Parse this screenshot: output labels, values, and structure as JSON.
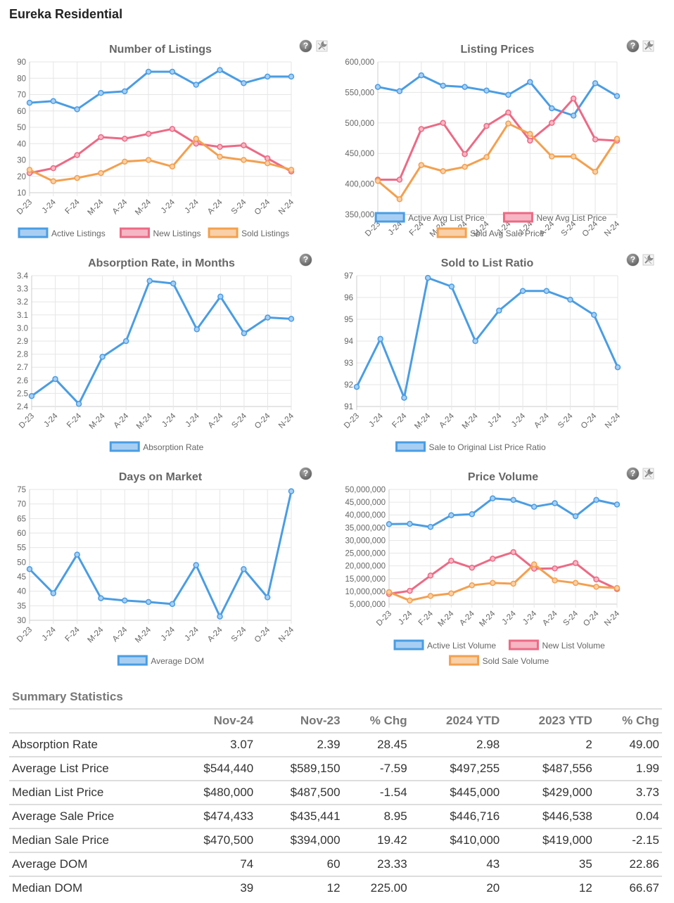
{
  "page": {
    "title": "Eureka Residential"
  },
  "icons": {
    "help": "?"
  },
  "colors": {
    "blue": "#4a9de3",
    "pink": "#ec6a85",
    "orange": "#f3a04f",
    "blue_fill": "#a8cff3",
    "pink_fill": "#f6b6c4",
    "orange_fill": "#f9d0a7",
    "grid": "#e6e6e6"
  },
  "chart_data": [
    {
      "id": "listings",
      "type": "line",
      "title": "Number of Listings",
      "categories": [
        "D-23",
        "J-24",
        "F-24",
        "M-24",
        "A-24",
        "M-24",
        "J-24",
        "J-24",
        "A-24",
        "S-24",
        "O-24",
        "N-24"
      ],
      "ylim": [
        10,
        90
      ],
      "yticks": [
        10,
        20,
        30,
        40,
        50,
        60,
        70,
        80,
        90
      ],
      "ytick_labels": [
        "10",
        "20",
        "30",
        "40",
        "50",
        "60",
        "70",
        "80",
        "90"
      ],
      "grid": true,
      "legend": "bottom",
      "series": [
        {
          "name": "Active Listings",
          "color": "blue",
          "values": [
            65,
            66,
            61,
            71,
            72,
            84,
            84,
            76,
            85,
            77,
            81,
            81
          ]
        },
        {
          "name": "New Listings",
          "color": "pink",
          "values": [
            22,
            25,
            33,
            44,
            43,
            46,
            49,
            40,
            38,
            39,
            31,
            23
          ]
        },
        {
          "name": "Sold Listings",
          "color": "orange",
          "values": [
            24,
            17,
            19,
            22,
            29,
            30,
            26,
            43,
            32,
            30,
            28,
            24
          ]
        }
      ],
      "tools": true
    },
    {
      "id": "prices",
      "type": "line",
      "title": "Listing Prices",
      "categories": [
        "D-23",
        "J-24",
        "F-24",
        "M-24",
        "A-24",
        "M-24",
        "J-24",
        "J-24",
        "A-24",
        "S-24",
        "O-24",
        "N-24"
      ],
      "ylim": [
        350000,
        600000
      ],
      "yticks": [
        350000,
        400000,
        450000,
        500000,
        550000,
        600000
      ],
      "ytick_labels": [
        "350,000",
        "400,000",
        "450,000",
        "500,000",
        "550,000",
        "600,000"
      ],
      "grid": true,
      "legend": "bottom",
      "series": [
        {
          "name": "Active Avg List Price",
          "color": "blue",
          "values": [
            559000,
            552000,
            578000,
            561000,
            559000,
            553000,
            546000,
            567000,
            524000,
            512000,
            565000,
            544000
          ]
        },
        {
          "name": "New Avg List Price",
          "color": "pink",
          "values": [
            407000,
            407000,
            490000,
            500000,
            449000,
            495000,
            517000,
            471000,
            500000,
            540000,
            473000,
            471000
          ]
        },
        {
          "name": "Sold Avg Sale Price",
          "color": "orange",
          "values": [
            405000,
            375000,
            431000,
            421000,
            428000,
            444000,
            499000,
            482000,
            445000,
            445000,
            420000,
            474000
          ]
        }
      ],
      "tools": true
    },
    {
      "id": "absorption",
      "type": "line",
      "title": "Absorption Rate, in Months",
      "categories": [
        "D-23",
        "J-24",
        "F-24",
        "M-24",
        "A-24",
        "M-24",
        "J-24",
        "J-24",
        "A-24",
        "S-24",
        "O-24",
        "N-24"
      ],
      "ylim": [
        2.4,
        3.4
      ],
      "yticks": [
        2.4,
        2.5,
        2.6,
        2.7,
        2.8,
        2.9,
        3.0,
        3.1,
        3.2,
        3.3,
        3.4
      ],
      "ytick_labels": [
        "2.4",
        "2.5",
        "2.6",
        "2.7",
        "2.8",
        "2.9",
        "3.0",
        "3.1",
        "3.2",
        "3.3",
        "3.4"
      ],
      "grid": true,
      "legend": "bottom",
      "series": [
        {
          "name": "Absorption Rate",
          "color": "blue",
          "values": [
            2.48,
            2.61,
            2.42,
            2.78,
            2.9,
            3.36,
            3.34,
            2.99,
            3.24,
            2.96,
            3.08,
            3.07
          ]
        }
      ],
      "tools": false
    },
    {
      "id": "ratio",
      "type": "line",
      "title": "Sold to List Ratio",
      "categories": [
        "D-23",
        "J-24",
        "F-24",
        "M-24",
        "A-24",
        "M-24",
        "J-24",
        "J-24",
        "A-24",
        "S-24",
        "O-24",
        "N-24"
      ],
      "ylim": [
        91,
        97
      ],
      "yticks": [
        91,
        92,
        93,
        94,
        95,
        96,
        97
      ],
      "ytick_labels": [
        "91",
        "92",
        "93",
        "94",
        "95",
        "96",
        "97"
      ],
      "grid": true,
      "legend": "bottom",
      "series": [
        {
          "name": "Sale to Original List Price Ratio",
          "color": "blue",
          "values": [
            91.9,
            94.1,
            91.4,
            96.9,
            96.5,
            94.0,
            95.4,
            96.3,
            96.3,
            95.9,
            95.2,
            92.8
          ]
        }
      ],
      "tools": true
    },
    {
      "id": "dom",
      "type": "line",
      "title": "Days on Market",
      "categories": [
        "D-23",
        "J-24",
        "F-24",
        "M-24",
        "A-24",
        "M-24",
        "J-24",
        "J-24",
        "A-24",
        "S-24",
        "O-24",
        "N-24"
      ],
      "ylim": [
        30,
        75
      ],
      "yticks": [
        30,
        35,
        40,
        45,
        50,
        55,
        60,
        65,
        70,
        75
      ],
      "ytick_labels": [
        "30",
        "35",
        "40",
        "45",
        "50",
        "55",
        "60",
        "65",
        "70",
        "75"
      ],
      "grid": true,
      "legend": "bottom",
      "series": [
        {
          "name": "Average DOM",
          "color": "blue",
          "values": [
            47.6,
            39.3,
            52.6,
            37.6,
            36.8,
            36.3,
            35.6,
            49.0,
            31.3,
            47.6,
            37.9,
            74.4
          ]
        }
      ],
      "tools": false
    },
    {
      "id": "volume",
      "type": "line",
      "title": "Price Volume",
      "categories": [
        "D-23",
        "J-24",
        "F-24",
        "M-24",
        "A-24",
        "M-24",
        "J-24",
        "J-24",
        "A-24",
        "S-24",
        "O-24",
        "N-24"
      ],
      "ylim": [
        5000000,
        50000000
      ],
      "yticks": [
        5000000,
        10000000,
        15000000,
        20000000,
        25000000,
        30000000,
        35000000,
        40000000,
        45000000,
        50000000
      ],
      "ytick_labels": [
        "5,000,000",
        "10,000,000",
        "15,000,000",
        "20,000,000",
        "25,000,000",
        "30,000,000",
        "35,000,000",
        "40,000,000",
        "45,000,000",
        "50,000,000"
      ],
      "grid": true,
      "legend": "bottom",
      "series": [
        {
          "name": "Active List Volume",
          "color": "blue",
          "values": [
            36400000,
            36500000,
            35300000,
            39900000,
            40300000,
            46500000,
            45900000,
            43200000,
            44600000,
            39500000,
            45900000,
            44100000
          ]
        },
        {
          "name": "New List Volume",
          "color": "pink",
          "values": [
            9000000,
            10200000,
            16200000,
            22000000,
            19300000,
            22800000,
            25400000,
            18900000,
            19000000,
            21100000,
            14700000,
            10900000
          ]
        },
        {
          "name": "Sold Sale Volume",
          "color": "orange",
          "values": [
            9700000,
            6400000,
            8200000,
            9200000,
            12400000,
            13300000,
            13000000,
            20600000,
            14300000,
            13300000,
            11800000,
            11300000
          ]
        }
      ],
      "tools": true
    }
  ],
  "summary": {
    "title": "Summary Statistics",
    "headers": [
      "",
      "Nov-24",
      "Nov-23",
      "% Chg",
      "2024 YTD",
      "2023 YTD",
      "% Chg"
    ],
    "rows": [
      [
        "Absorption Rate",
        "3.07",
        "2.39",
        "28.45",
        "2.98",
        "2",
        "49.00"
      ],
      [
        "Average List Price",
        "$544,440",
        "$589,150",
        "-7.59",
        "$497,255",
        "$487,556",
        "1.99"
      ],
      [
        "Median List Price",
        "$480,000",
        "$487,500",
        "-1.54",
        "$445,000",
        "$429,000",
        "3.73"
      ],
      [
        "Average Sale Price",
        "$474,433",
        "$435,441",
        "8.95",
        "$446,716",
        "$446,538",
        "0.04"
      ],
      [
        "Median Sale Price",
        "$470,500",
        "$394,000",
        "19.42",
        "$410,000",
        "$419,000",
        "-2.15"
      ],
      [
        "Average DOM",
        "74",
        "60",
        "23.33",
        "43",
        "35",
        "22.86"
      ],
      [
        "Median DOM",
        "39",
        "12",
        "225.00",
        "20",
        "12",
        "66.67"
      ]
    ]
  }
}
